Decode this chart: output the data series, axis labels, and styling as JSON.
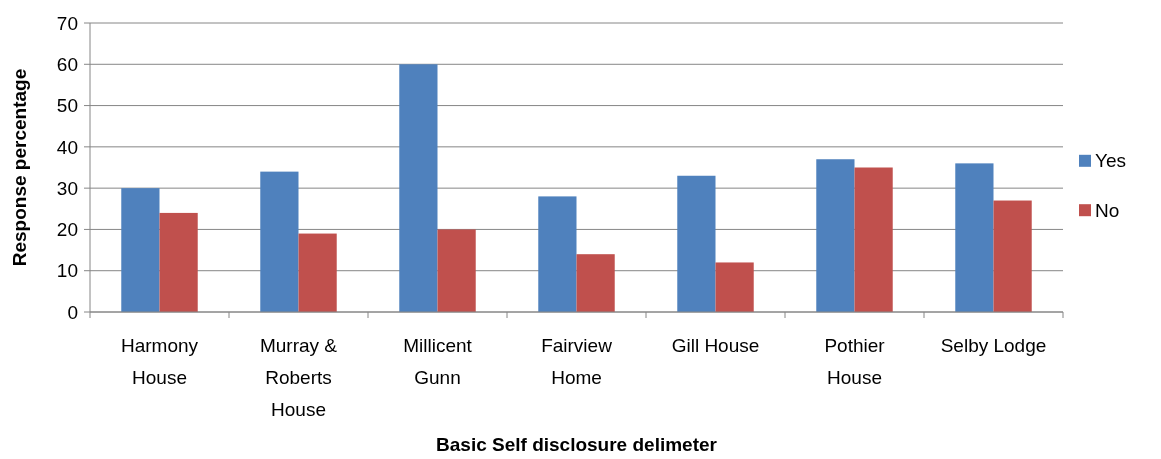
{
  "chart_data": {
    "type": "bar",
    "xlabel": "Basic Self disclosure delimeter",
    "ylabel": "Response percentage",
    "categories": [
      "Harmony House",
      "Murray & Roberts House",
      "Millicent Gunn",
      "Fairview Home",
      "Gill House",
      "Pothier House",
      "Selby Lodge"
    ],
    "series": [
      {
        "name": "Yes",
        "color": "#4f81bd",
        "values": [
          30,
          34,
          60,
          28,
          33,
          37,
          36
        ]
      },
      {
        "name": "No",
        "color": "#c0504d",
        "values": [
          24,
          19,
          20,
          14,
          12,
          35,
          27
        ]
      }
    ],
    "ylim": [
      0,
      70
    ],
    "yticks": [
      0,
      10,
      20,
      30,
      40,
      50,
      60,
      70
    ],
    "grid": "y",
    "legend": "right"
  }
}
